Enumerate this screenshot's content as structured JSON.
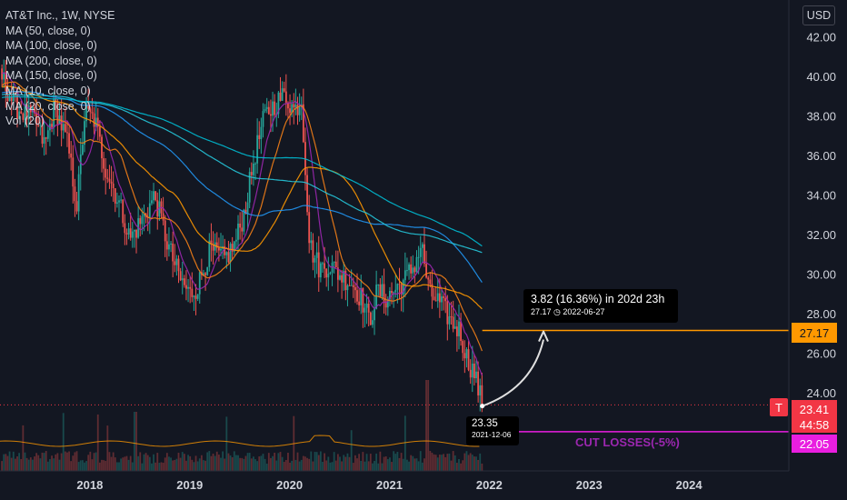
{
  "legend": {
    "symbol": "AT&T Inc., 1W, NYSE",
    "indicators": [
      "MA (50, close, 0)",
      "MA (100, close, 0)",
      "MA (200, close, 0)",
      "MA (150, close, 0)",
      "MA (10, close, 0)",
      "MA (20, close, 0)",
      "Vol (20)"
    ]
  },
  "currency_label": "USD",
  "countdown": "44:58",
  "annotation": {
    "main": "3.82 (16.36%) in 202d 23h",
    "sub": "27.17 ◷ 2022-06-27"
  },
  "point_label": {
    "price": "23.35",
    "date": "2021-12-06"
  },
  "cut_losses_label": "CUT LOSSES(-5%)",
  "t_badge": "T",
  "price_tags": {
    "target": "27.17",
    "current": "23.41",
    "stop": "22.05"
  },
  "colors": {
    "background": "#131722",
    "up_candle": "#26a69a",
    "down_candle": "#ef5350",
    "target_line": "#ff9800",
    "stop_line": "#e91ee0",
    "current_line": "#f23645",
    "ma10": "#9c27b0",
    "ma20": "#f57f17",
    "ma50": "#ff9800",
    "ma100": "#2196f3",
    "ma150": "#26c6da",
    "ma200": "#00bcd4"
  },
  "chart_data": {
    "type": "candlestick",
    "symbol": "AT&T Inc.",
    "interval": "1W",
    "exchange": "NYSE",
    "currency": "USD",
    "x_tick_labels": [
      "2018",
      "2019",
      "2020",
      "2021",
      "2022",
      "2023",
      "2024"
    ],
    "y_tick_labels": [
      "42.00",
      "40.00",
      "38.00",
      "36.00",
      "34.00",
      "32.00",
      "30.00",
      "28.00",
      "26.00",
      "24.00"
    ],
    "ylim": [
      21.5,
      43
    ],
    "xlim": [
      2017.1,
      2025.0
    ],
    "grid": false,
    "price_path": [
      [
        2017.1,
        40.2
      ],
      [
        2017.25,
        38.5
      ],
      [
        2017.45,
        37.8
      ],
      [
        2017.55,
        36.5
      ],
      [
        2017.65,
        38.6
      ],
      [
        2017.78,
        36.5
      ],
      [
        2017.87,
        33.5
      ],
      [
        2017.95,
        38.2
      ],
      [
        2018.05,
        37.8
      ],
      [
        2018.15,
        35.5
      ],
      [
        2018.3,
        33.5
      ],
      [
        2018.4,
        31.8
      ],
      [
        2018.55,
        33.0
      ],
      [
        2018.65,
        34.0
      ],
      [
        2018.78,
        31.5
      ],
      [
        2018.9,
        29.8
      ],
      [
        2019.0,
        29.0
      ],
      [
        2019.08,
        29.4
      ],
      [
        2019.2,
        31.2
      ],
      [
        2019.35,
        30.8
      ],
      [
        2019.45,
        31.5
      ],
      [
        2019.55,
        33.2
      ],
      [
        2019.65,
        36.0
      ],
      [
        2019.75,
        38.0
      ],
      [
        2019.85,
        38.6
      ],
      [
        2019.95,
        39.1
      ],
      [
        2020.05,
        38.3
      ],
      [
        2020.12,
        38.9
      ],
      [
        2020.2,
        31.5
      ],
      [
        2020.3,
        30.3
      ],
      [
        2020.4,
        30.5
      ],
      [
        2020.5,
        30.0
      ],
      [
        2020.62,
        29.6
      ],
      [
        2020.72,
        28.8
      ],
      [
        2020.8,
        27.6
      ],
      [
        2020.88,
        29.2
      ],
      [
        2020.96,
        28.8
      ],
      [
        2021.05,
        29.2
      ],
      [
        2021.15,
        29.7
      ],
      [
        2021.25,
        30.5
      ],
      [
        2021.32,
        31.5
      ],
      [
        2021.4,
        29.0
      ],
      [
        2021.48,
        28.7
      ],
      [
        2021.55,
        28.2
      ],
      [
        2021.62,
        27.6
      ],
      [
        2021.7,
        27.2
      ],
      [
        2021.78,
        25.7
      ],
      [
        2021.85,
        25.0
      ],
      [
        2021.93,
        23.4
      ]
    ],
    "moving_averages": [
      {
        "name": "MA (10, close, 0)",
        "period": 10,
        "color": "#9c27b0"
      },
      {
        "name": "MA (20, close, 0)",
        "period": 20,
        "color": "#f57f17"
      },
      {
        "name": "MA (50, close, 0)",
        "period": 50,
        "color": "#ff9800"
      },
      {
        "name": "MA (100, close, 0)",
        "period": 100,
        "color": "#2196f3"
      },
      {
        "name": "MA (150, close, 0)",
        "period": 150,
        "color": "#26c6da"
      },
      {
        "name": "MA (200, close, 0)",
        "period": 200,
        "color": "#00bcd4"
      }
    ],
    "volume": {
      "name": "Vol (20)"
    },
    "horizontal_lines": [
      {
        "label": "target",
        "price": 27.17,
        "color": "#ff9800"
      },
      {
        "label": "current",
        "price": 23.41,
        "color": "#f23645",
        "style": "dotted"
      },
      {
        "label": "stop",
        "price": 22.05,
        "color": "#e91ee0"
      }
    ],
    "projection": {
      "from": {
        "date": "2021-12-06",
        "price": 23.35
      },
      "to": {
        "date": "2022-06-27",
        "price": 27.17
      },
      "change": 3.82,
      "change_pct": 16.36,
      "duration": "202d 23h"
    }
  }
}
